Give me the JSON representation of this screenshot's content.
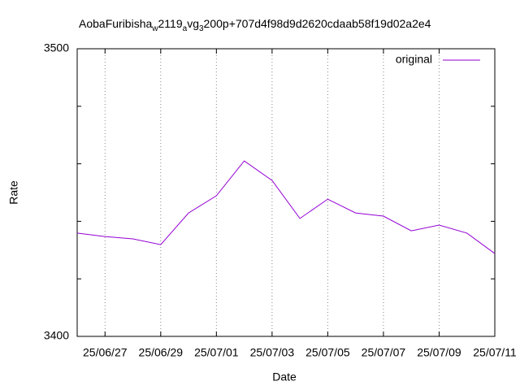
{
  "chart_data": {
    "type": "line",
    "title": [
      "AobaFuribisha",
      "w",
      "2119",
      "a",
      "vg",
      "3",
      "200p+707d4f98d9d2620cdaab58f19d02a2e4"
    ],
    "x_label": "Date",
    "y_label": "Rate",
    "categories": [
      null,
      "25/06/27",
      null,
      "25/06/29",
      null,
      "25/07/01",
      null,
      "25/07/03",
      null,
      "25/07/05",
      null,
      "25/07/07",
      null,
      "25/07/09",
      null,
      "25/07/11"
    ],
    "series": [
      {
        "name": "original",
        "color": "#9400d3",
        "values": [
          3435.9,
          3434.7,
          3433.9,
          3431.9,
          3442.9,
          3448.9,
          3461.0,
          3454.2,
          3441.0,
          3447.7,
          3442.9,
          3441.8,
          3436.7,
          3438.7,
          3435.9,
          3428.8
        ]
      }
    ],
    "ylim": [
      3400,
      3500
    ],
    "yticks": [
      3400,
      3500
    ],
    "yminorticks": [
      3420,
      3440,
      3460,
      3480
    ],
    "grid": "x",
    "legend": "top-right"
  }
}
